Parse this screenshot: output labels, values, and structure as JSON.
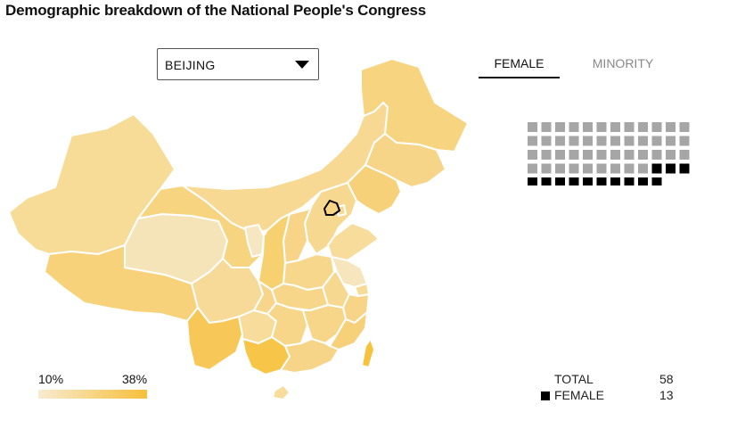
{
  "title": "Demographic breakdown of the National People's Congress",
  "dropdown": {
    "selected": "BEIJING"
  },
  "tabs": [
    {
      "label": "FEMALE",
      "active": true
    },
    {
      "label": "MINORITY",
      "active": false
    }
  ],
  "legend": {
    "min_label": "10%",
    "max_label": "38%",
    "min_color": "#f7ebd0",
    "max_color": "#f7bf3a"
  },
  "stats": {
    "total_label": "TOTAL",
    "total_value": "58",
    "female_label": "FEMALE",
    "female_value": "13"
  },
  "waffle": {
    "total": 58,
    "highlighted": 13,
    "per_row": 12,
    "base_color": "#a6a6a6",
    "highlight_color": "#000000"
  },
  "colors": {
    "border": "#ffffff",
    "selected_outline": "#000000"
  }
}
